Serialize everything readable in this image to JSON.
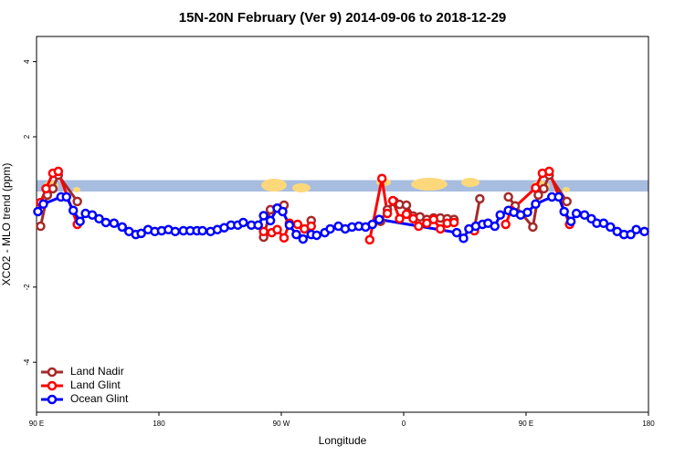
{
  "chart_data": {
    "type": "line",
    "title": "15N-20N February (Ver 9)   2014-09-06 to 2018-12-29",
    "x_label": "Longitude",
    "y_label": "XCO2 - MLO trend (ppm)",
    "xlim": [
      90,
      540
    ],
    "ylim": [
      -5.33,
      4.67
    ],
    "xticks": [
      {
        "value": 90,
        "label": "90 E"
      },
      180,
      {
        "value": 270,
        "label": "90 W"
      },
      {
        "value": 360,
        "label": "0"
      },
      {
        "value": 450,
        "label": "90 E"
      },
      {
        "value": 540,
        "label": "180"
      }
    ],
    "yticks": [
      -4,
      -2,
      2,
      4
    ],
    "legend": "bottom-left",
    "series": [
      {
        "name": "Land Nadir",
        "color": "#a52a2a",
        "x": [
          93,
          98,
          102,
          106,
          120,
          190,
          257,
          262,
          267,
          272,
          282,
          292,
          320,
          343,
          348,
          353,
          357,
          362,
          367,
          372,
          377,
          382,
          387,
          392,
          397,
          405,
          412,
          416,
          425,
          437,
          442,
          455,
          459,
          463,
          467,
          480
        ],
        "values": [
          -0.38,
          0.45,
          0.62,
          0.98,
          0.28,
          null,
          -0.67,
          0.06,
          0.1,
          0.18,
          null,
          -0.23,
          null,
          -0.25,
          0.06,
          0.28,
          0.2,
          0.18,
          -0.11,
          -0.13,
          -0.2,
          -0.16,
          -0.16,
          -0.18,
          -0.2,
          null,
          -0.43,
          0.35,
          null,
          0.4,
          0.16,
          -0.4,
          0.45,
          0.62,
          0.98,
          0.28
        ]
      },
      {
        "name": "Land Glint",
        "color": "#ff0000",
        "x": [
          93,
          97,
          102,
          106,
          120,
          190,
          257,
          263,
          267,
          272,
          276,
          282,
          287,
          292,
          320,
          335,
          344,
          348,
          352,
          357,
          362,
          367,
          371,
          377,
          382,
          387,
          392,
          397,
          405,
          412,
          425,
          435,
          439,
          457,
          462,
          467,
          482
        ],
        "values": [
          0.25,
          0.62,
          1.03,
          1.08,
          -0.33,
          null,
          -0.52,
          -0.55,
          -0.47,
          -0.69,
          -0.3,
          -0.33,
          -0.45,
          -0.38,
          null,
          -0.74,
          0.89,
          -0.04,
          0.3,
          -0.18,
          -0.06,
          -0.18,
          -0.38,
          -0.3,
          -0.2,
          -0.45,
          -0.3,
          -0.28,
          null,
          -0.5,
          null,
          -0.33,
          0.04,
          0.64,
          1.03,
          1.08,
          -0.33
        ]
      },
      {
        "name": "Ocean Glint",
        "color": "#0000ff",
        "x": [
          91,
          95,
          108,
          112,
          117,
          122,
          126,
          131,
          136,
          141,
          147,
          153,
          158,
          163,
          167,
          172,
          177,
          182,
          187,
          192,
          198,
          203,
          208,
          212,
          218,
          223,
          228,
          233,
          238,
          242,
          248,
          253,
          257,
          262,
          267,
          271,
          276,
          281,
          286,
          292,
          296,
          302,
          306,
          312,
          317,
          322,
          327,
          332,
          337,
          342,
          399,
          404,
          408,
          413,
          418,
          422,
          427,
          431,
          437,
          441,
          446,
          451,
          457,
          469,
          474,
          478,
          483,
          487,
          493,
          498,
          502,
          507,
          512,
          517,
          522,
          527,
          531,
          537
        ],
        "values": [
          0.01,
          0.21,
          0.4,
          0.4,
          0.04,
          -0.25,
          -0.04,
          -0.08,
          -0.18,
          -0.28,
          -0.3,
          -0.4,
          -0.52,
          -0.6,
          -0.57,
          -0.47,
          -0.52,
          -0.5,
          -0.47,
          -0.52,
          -0.5,
          -0.5,
          -0.5,
          -0.5,
          -0.52,
          -0.47,
          -0.42,
          -0.35,
          -0.35,
          -0.28,
          -0.35,
          -0.35,
          -0.1,
          -0.23,
          0.1,
          0.01,
          -0.35,
          -0.6,
          -0.72,
          -0.6,
          -0.62,
          -0.55,
          -0.45,
          -0.38,
          -0.45,
          -0.4,
          -0.38,
          -0.4,
          -0.33,
          -0.2,
          -0.55,
          -0.7,
          -0.45,
          -0.38,
          -0.33,
          -0.3,
          -0.38,
          -0.08,
          0.04,
          -0.01,
          -0.08,
          -0.01,
          0.21,
          0.4,
          0.4,
          0.01,
          -0.25,
          -0.04,
          -0.08,
          -0.18,
          -0.3,
          -0.3,
          -0.4,
          -0.52,
          -0.6,
          -0.6,
          -0.47,
          -0.52
        ]
      }
    ]
  }
}
